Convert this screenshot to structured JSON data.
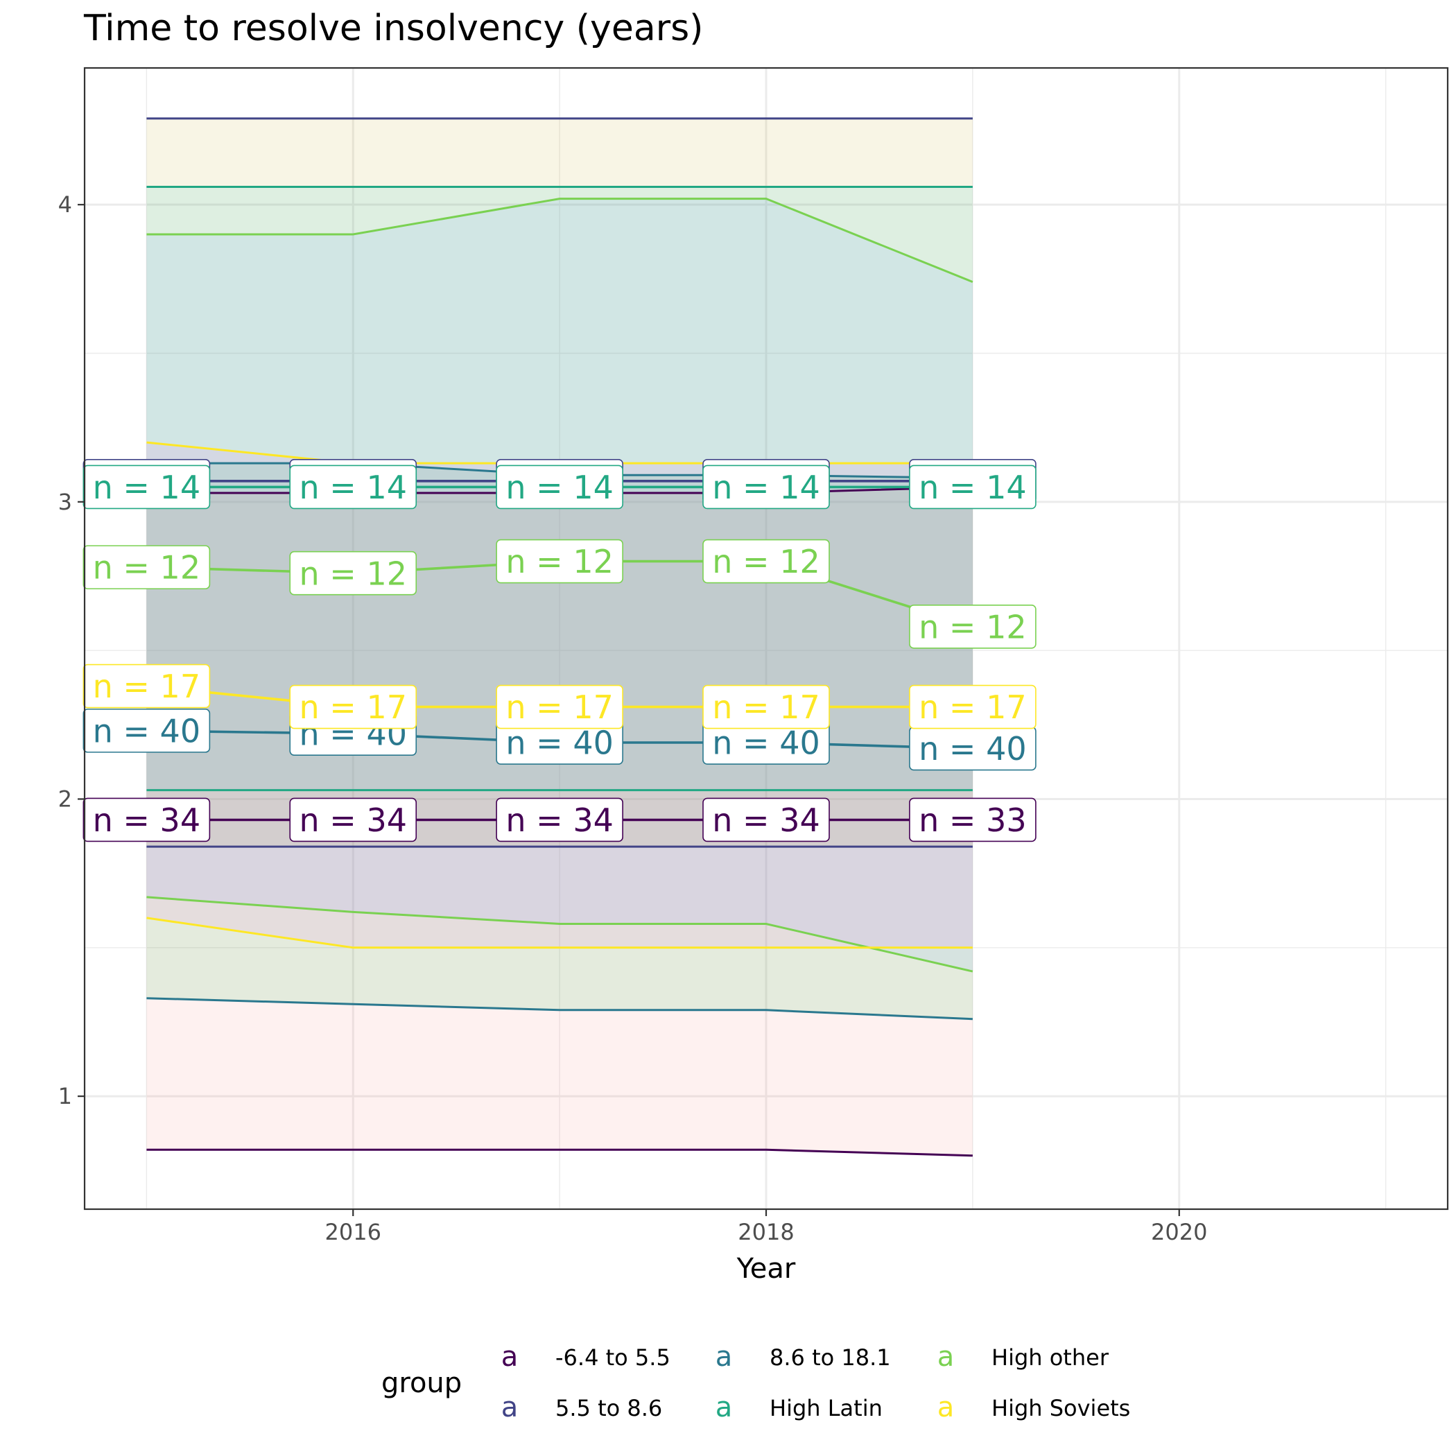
{
  "chart_data": {
    "type": "line",
    "title": "Time to resolve insolvency (years)",
    "xlabel": "Year",
    "ylabel": "",
    "xlim": [
      2014.7,
      2021.3
    ],
    "ylim": [
      0.62,
      4.46
    ],
    "xticks": [
      2016,
      2018,
      2020
    ],
    "yticks": [
      1,
      2,
      3,
      4
    ],
    "grid": true,
    "legend": {
      "title": "group",
      "position": "bottom",
      "key_glyph": "a",
      "entries": [
        "-6.4 to 5.5",
        "5.5 to 8.6",
        "8.6 to 18.1",
        "High Latin",
        "High other",
        "High Soviets"
      ]
    },
    "x": [
      2015,
      2016,
      2017,
      2018,
      2019
    ],
    "series": [
      {
        "name": "-6.4 to 5.5",
        "color": "#440154",
        "fill": "#F8766D",
        "mean": [
          1.93,
          1.93,
          1.93,
          1.93,
          1.93
        ],
        "upper": [
          3.03,
          3.03,
          3.03,
          3.03,
          3.05
        ],
        "lower": [
          0.82,
          0.82,
          0.82,
          0.82,
          0.8
        ],
        "labels": [
          "n = 34",
          "n = 34",
          "n = 34",
          "n = 34",
          "n = 33"
        ]
      },
      {
        "name": "5.5 to 8.6",
        "color": "#414487",
        "fill": "#B79F00",
        "mean": [
          3.07,
          3.07,
          3.07,
          3.07,
          3.07
        ],
        "upper": [
          4.29,
          4.29,
          4.29,
          4.29,
          4.29
        ],
        "lower": [
          1.84,
          1.84,
          1.84,
          1.84,
          1.84
        ],
        "labels": [
          "n = 14",
          "n = 14",
          "n = 14",
          "n = 14",
          "n = 14"
        ]
      },
      {
        "name": "8.6 to 18.1",
        "color": "#2A788E",
        "fill": "#00BA38",
        "mean": [
          2.23,
          2.22,
          2.19,
          2.19,
          2.17
        ],
        "upper": [
          3.13,
          3.13,
          3.09,
          3.09,
          3.08
        ],
        "lower": [
          1.33,
          1.31,
          1.29,
          1.29,
          1.26
        ],
        "labels": [
          "n = 40",
          "n = 40",
          "n = 40",
          "n = 40",
          "n = 40"
        ]
      },
      {
        "name": "High Latin",
        "color": "#22A884",
        "fill": "#00BFC4",
        "mean": [
          3.05,
          3.05,
          3.05,
          3.05,
          3.05
        ],
        "upper": [
          4.06,
          4.06,
          4.06,
          4.06,
          4.06
        ],
        "lower": [
          2.03,
          2.03,
          2.03,
          2.03,
          2.03
        ],
        "labels": [
          "n = 14",
          "n = 14",
          "n = 14",
          "n = 14",
          "n = 14"
        ]
      },
      {
        "name": "High other",
        "color": "#7AD151",
        "fill": "#619CFF",
        "mean": [
          2.78,
          2.76,
          2.8,
          2.8,
          2.58
        ],
        "upper": [
          3.9,
          3.9,
          4.02,
          4.02,
          3.74
        ],
        "lower": [
          1.67,
          1.62,
          1.58,
          1.58,
          1.42
        ],
        "labels": [
          "n = 12",
          "n = 12",
          "n = 12",
          "n = 12",
          "n = 12"
        ]
      },
      {
        "name": "High Soviets",
        "color": "#FDE725",
        "fill": "#F564E3",
        "mean": [
          2.38,
          2.31,
          2.31,
          2.31,
          2.31
        ],
        "upper": [
          3.2,
          3.13,
          3.13,
          3.13,
          3.13
        ],
        "lower": [
          1.6,
          1.5,
          1.5,
          1.5,
          1.5
        ],
        "labels": [
          "n = 17",
          "n = 17",
          "n = 17",
          "n = 17",
          "n = 17"
        ]
      }
    ]
  }
}
